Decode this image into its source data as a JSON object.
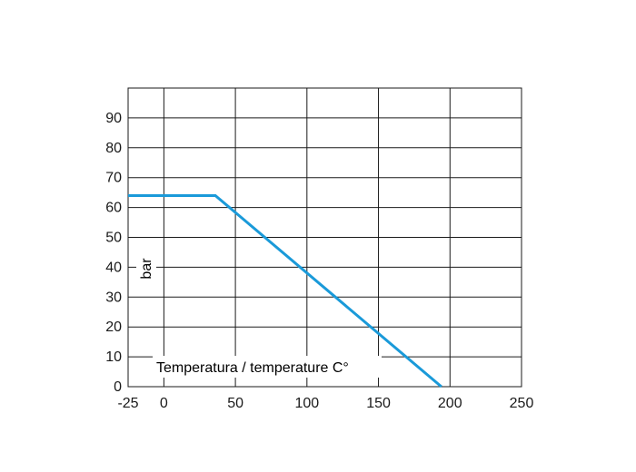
{
  "chart_data": {
    "type": "line",
    "title": "",
    "xlabel": "Temperatura / temperature C°",
    "ylabel": "bar",
    "xlim": [
      -25,
      250
    ],
    "ylim": [
      0,
      100
    ],
    "x_ticks": [
      -25,
      0,
      50,
      100,
      150,
      200,
      250
    ],
    "y_ticks": [
      0,
      10,
      20,
      30,
      40,
      50,
      60,
      70,
      80,
      90
    ],
    "x_gridlines": [
      0,
      50,
      100,
      150,
      200
    ],
    "y_gridlines": [
      10,
      20,
      30,
      40,
      50,
      60,
      70,
      80,
      90
    ],
    "grid": true,
    "series": [
      {
        "color": "#1a9ad9",
        "x": [
          -25,
          36,
          194
        ],
        "y": [
          64,
          64,
          0
        ]
      }
    ]
  }
}
